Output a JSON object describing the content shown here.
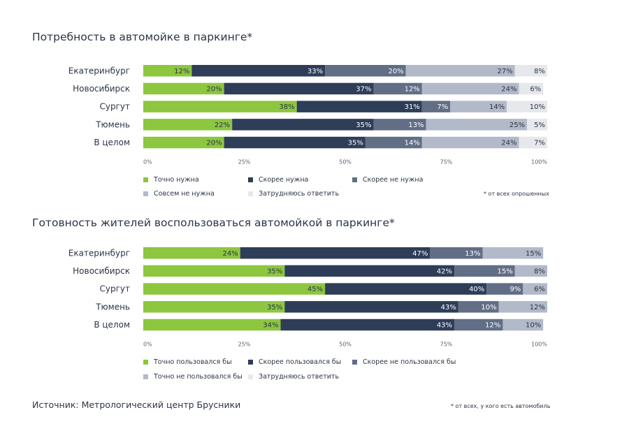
{
  "colors": {
    "tochno": "#8dc63f",
    "skoree": "#2e3d58",
    "skoree_ne": "#616e86",
    "sovsem_ne": "#b2b9c8",
    "zatrudn": "#e6e8ec"
  },
  "source": "Источник: Метрологический центр Брусники",
  "chart_data": [
    {
      "type": "bar",
      "orientation": "horizontal",
      "stacked": true,
      "title": "Потребность в автомойке в паркинге*",
      "categories": [
        "Екатеринбург",
        "Новосибирск",
        "Сургут",
        "Тюмень",
        "В целом"
      ],
      "xlim": [
        0,
        100
      ],
      "xticks": [
        "0%",
        "25%",
        "50%",
        "75%",
        "100%"
      ],
      "grid": false,
      "legend_position": "bottom",
      "series": [
        {
          "name": "Точно нужна",
          "color_key": "tochno",
          "values": [
            12,
            20,
            38,
            22,
            20
          ]
        },
        {
          "name": "Скорее нужна",
          "color_key": "skoree",
          "values": [
            33,
            37,
            31,
            35,
            35
          ]
        },
        {
          "name": "Скорее не нужна",
          "color_key": "skoree_ne",
          "values": [
            20,
            12,
            7,
            13,
            14
          ]
        },
        {
          "name": "Совсем не нужна",
          "color_key": "sovsem_ne",
          "values": [
            27,
            24,
            14,
            25,
            24
          ]
        },
        {
          "name": "Затрудняюсь ответить",
          "color_key": "zatrudn",
          "values": [
            8,
            6,
            10,
            5,
            7
          ]
        }
      ],
      "footnote": "* от всех опрошенных"
    },
    {
      "type": "bar",
      "orientation": "horizontal",
      "stacked": true,
      "title": "Готовность жителей воспользоваться автомойкой в паркинге*",
      "categories": [
        "Екатеринбург",
        "Новосибирск",
        "Сургут",
        "Тюмень",
        "В целом"
      ],
      "xlim": [
        0,
        100
      ],
      "xticks": [
        "0%",
        "25%",
        "50%",
        "75%",
        "100%"
      ],
      "grid": false,
      "legend_position": "bottom",
      "series": [
        {
          "name": "Точно пользовался бы",
          "color_key": "tochno",
          "values": [
            24,
            35,
            45,
            35,
            34
          ]
        },
        {
          "name": "Скорее пользовался бы",
          "color_key": "skoree",
          "values": [
            47,
            42,
            40,
            43,
            43
          ]
        },
        {
          "name": "Скорее не пользовался бы",
          "color_key": "skoree_ne",
          "values": [
            13,
            15,
            9,
            10,
            12
          ]
        },
        {
          "name": "Точно  не пользовался бы",
          "color_key": "sovsem_ne",
          "values": [
            15,
            8,
            6,
            12,
            10
          ]
        },
        {
          "name": "Затрудняюсь ответить",
          "color_key": "zatrudn",
          "values": [
            null,
            null,
            null,
            null,
            null
          ]
        }
      ],
      "footnote": "* от всех, у кого есть автомобиль"
    }
  ]
}
